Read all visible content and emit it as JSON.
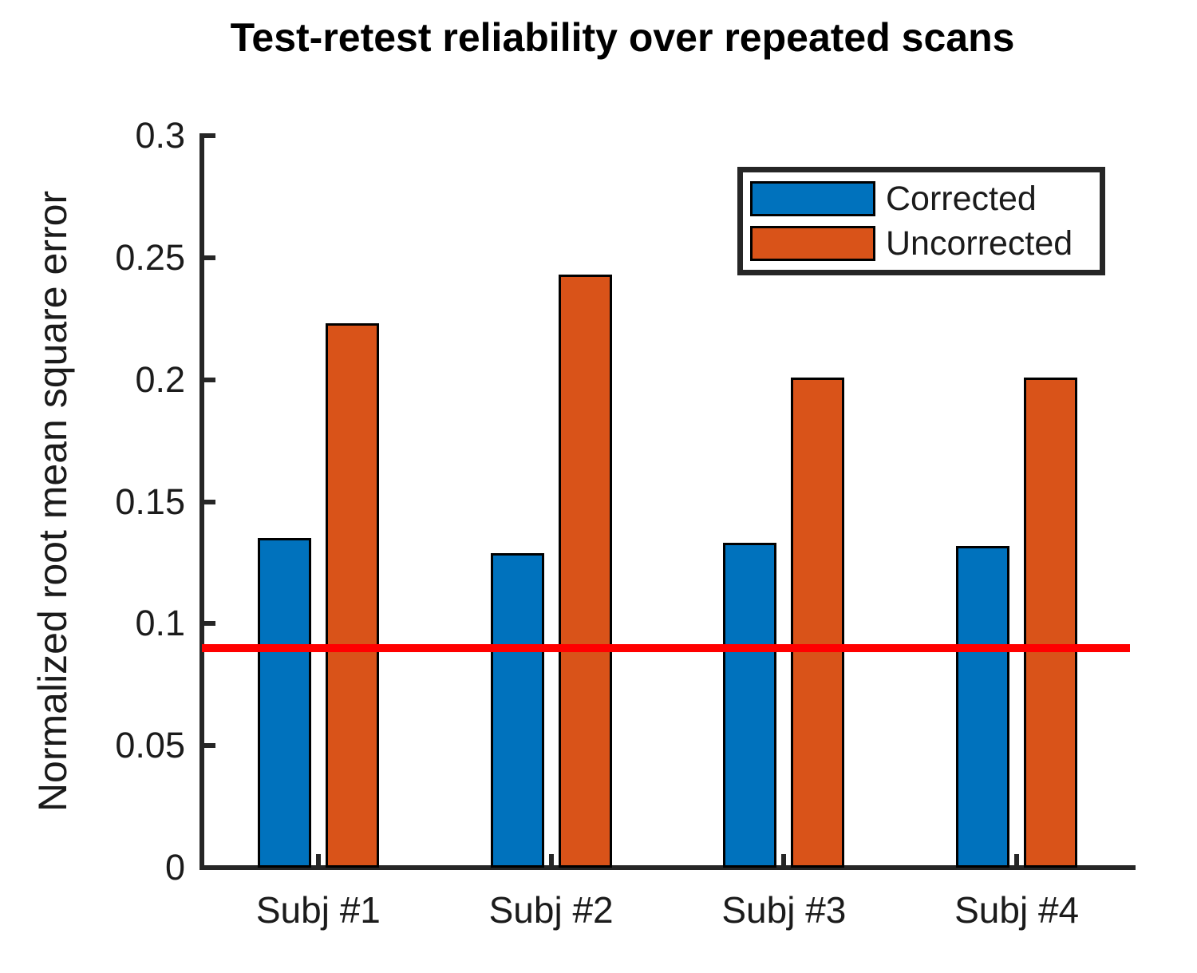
{
  "chart_data": {
    "type": "bar",
    "title": "Test-retest reliability over repeated scans",
    "xlabel": "",
    "ylabel": "Normalized root mean square error",
    "categories": [
      "Subj #1",
      "Subj #2",
      "Subj #3",
      "Subj #4"
    ],
    "series": [
      {
        "name": "Corrected",
        "color": "#0072BD",
        "values": [
          0.135,
          0.129,
          0.133,
          0.132
        ]
      },
      {
        "name": "Uncorrected",
        "color": "#D95319",
        "values": [
          0.223,
          0.243,
          0.201,
          0.201
        ]
      }
    ],
    "reference_line": {
      "value": 0.09,
      "color": "#FF0000"
    },
    "ylim": [
      0,
      0.3
    ],
    "yticks": [
      0,
      0.05,
      0.1,
      0.15,
      0.2,
      0.25,
      0.3
    ],
    "ytick_labels": [
      "0",
      "0.05",
      "0.1",
      "0.15",
      "0.2",
      "0.25",
      "0.3"
    ],
    "grid": false,
    "legend": {
      "position": "northeast"
    },
    "axis_color": "#262626",
    "bar_edge_color": "#000000"
  }
}
